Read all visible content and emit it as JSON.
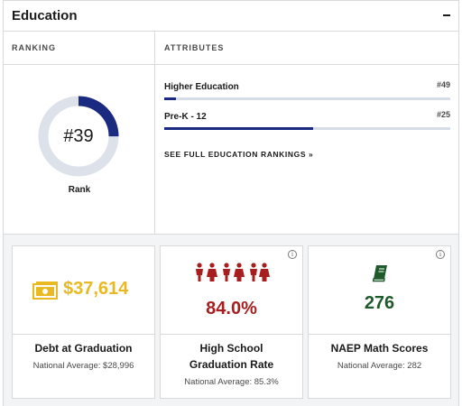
{
  "header": {
    "title": "Education",
    "collapse_icon": "minus-icon"
  },
  "ranking": {
    "heading": "RANKING",
    "rank_text": "#39",
    "rank_label": "Rank",
    "rank_value": 39,
    "rank_total": 50,
    "ring_color": "#1a2a80",
    "track_color": "#dde2ea"
  },
  "attributes": {
    "heading": "ATTRIBUTES",
    "items": [
      {
        "name": "Higher Education",
        "rank": "#49",
        "fill_fraction": 0.04
      },
      {
        "name": "Pre-K - 12",
        "rank": "#25",
        "fill_fraction": 0.52
      }
    ],
    "bar_color": "#1a2a80",
    "link": "SEE FULL EDUCATION RANKINGS »"
  },
  "cards": [
    {
      "icon": "money-icon",
      "value": "$37,614",
      "color": "#e8b921",
      "label": "Debt at Graduation",
      "sub": "National Average: $28,996"
    },
    {
      "icon": "people-icon",
      "value": "84.0%",
      "color": "#a81e1e",
      "label_line1": "High School",
      "label_line2": "Graduation Rate",
      "sub": "National Average: 85.3%",
      "info_icon": "info-icon"
    },
    {
      "icon": "book-icon",
      "value": "276",
      "color": "#1f5a2a",
      "label": "NAEP Math Scores",
      "sub": "National Average: 282",
      "info_icon": "info-icon"
    }
  ],
  "info_glyph": "i"
}
